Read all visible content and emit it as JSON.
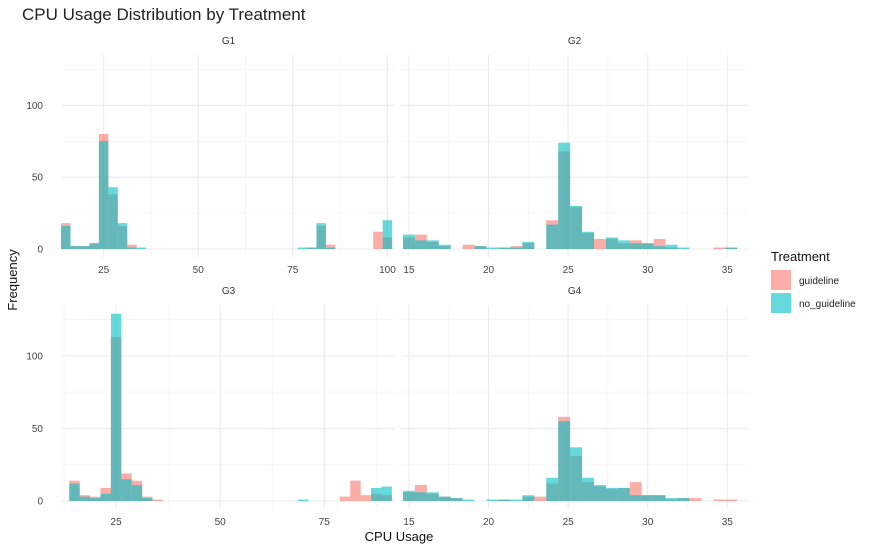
{
  "chart_data": {
    "type": "histogram",
    "title": "CPU Usage Distribution by Treatment",
    "xlabel": "CPU Usage",
    "ylabel": "Frequency",
    "legend": {
      "title": "Treatment",
      "placement": "right",
      "entries": [
        {
          "name": "guideline",
          "color": "#F8766D"
        },
        {
          "name": "no_guideline",
          "color": "#00BFC4"
        }
      ]
    },
    "ylim": [
      0,
      135
    ],
    "y_ticks": [
      0,
      50,
      100
    ],
    "grid": true,
    "panels": [
      {
        "name": "G1",
        "xlim": [
          14,
          102
        ],
        "x_ticks": [
          25,
          50,
          75,
          100
        ],
        "bin_width": 2.5,
        "series": [
          {
            "name": "guideline",
            "bins": [
              [
                15,
                18
              ],
              [
                17.5,
                2
              ],
              [
                20,
                2
              ],
              [
                22.5,
                4
              ],
              [
                25,
                80
              ],
              [
                27.5,
                38
              ],
              [
                30,
                16
              ],
              [
                32.5,
                3
              ],
              [
                80,
                1
              ],
              [
                82.5,
                16
              ],
              [
                85,
                3
              ],
              [
                97.5,
                12
              ],
              [
                100,
                8
              ]
            ]
          },
          {
            "name": "no_guideline",
            "bins": [
              [
                15,
                16
              ],
              [
                17.5,
                2
              ],
              [
                20,
                2
              ],
              [
                22.5,
                4
              ],
              [
                25,
                75
              ],
              [
                27.5,
                43
              ],
              [
                30,
                18
              ],
              [
                32.5,
                1
              ],
              [
                35,
                1
              ],
              [
                77.5,
                1
              ],
              [
                80,
                1
              ],
              [
                82.5,
                18
              ],
              [
                85,
                1
              ],
              [
                100,
                20
              ]
            ]
          }
        ]
      },
      {
        "name": "G2",
        "xlim": [
          14.5,
          36.3
        ],
        "x_ticks": [
          15,
          20,
          25,
          30,
          35
        ],
        "bin_width": 0.75,
        "series": [
          {
            "name": "guideline",
            "bins": [
              [
                15,
                8
              ],
              [
                15.75,
                10
              ],
              [
                16.5,
                5
              ],
              [
                17.25,
                2
              ],
              [
                18.75,
                3
              ],
              [
                19.5,
                2
              ],
              [
                21,
                1
              ],
              [
                21.75,
                2
              ],
              [
                22.5,
                4
              ],
              [
                24,
                20
              ],
              [
                24.75,
                68
              ],
              [
                25.5,
                29
              ],
              [
                26.25,
                11
              ],
              [
                27,
                7
              ],
              [
                27.75,
                7
              ],
              [
                28.5,
                4
              ],
              [
                29.25,
                6
              ],
              [
                30,
                4
              ],
              [
                30.75,
                7
              ],
              [
                31.5,
                1
              ],
              [
                34.5,
                1
              ],
              [
                35.25,
                1
              ]
            ]
          },
          {
            "name": "no_guideline",
            "bins": [
              [
                15,
                10
              ],
              [
                15.75,
                6
              ],
              [
                16.5,
                6
              ],
              [
                17.25,
                3
              ],
              [
                19.5,
                2
              ],
              [
                20.25,
                1
              ],
              [
                21,
                1
              ],
              [
                21.75,
                1
              ],
              [
                22.5,
                5
              ],
              [
                24,
                17
              ],
              [
                24.75,
                74
              ],
              [
                25.5,
                30
              ],
              [
                26.25,
                12
              ],
              [
                27.75,
                8
              ],
              [
                28.5,
                6
              ],
              [
                29.25,
                4
              ],
              [
                30,
                4
              ],
              [
                30.75,
                2
              ],
              [
                31.5,
                3
              ],
              [
                32.25,
                1
              ],
              [
                35.25,
                1
              ]
            ]
          }
        ]
      },
      {
        "name": "G3",
        "xlim": [
          12,
          92
        ],
        "x_ticks": [
          25,
          50,
          75
        ],
        "bin_width": 2.5,
        "series": [
          {
            "name": "guideline",
            "bins": [
              [
                15,
                14
              ],
              [
                17.5,
                4
              ],
              [
                20,
                3
              ],
              [
                22.5,
                9
              ],
              [
                25,
                113
              ],
              [
                27.5,
                19
              ],
              [
                30,
                14
              ],
              [
                32.5,
                3
              ],
              [
                35,
                1
              ],
              [
                80,
                3
              ],
              [
                82.5,
                14
              ],
              [
                85,
                4
              ],
              [
                87.5,
                5
              ],
              [
                90,
                4
              ]
            ]
          },
          {
            "name": "no_guideline",
            "bins": [
              [
                15,
                12
              ],
              [
                17.5,
                3
              ],
              [
                20,
                2
              ],
              [
                22.5,
                5
              ],
              [
                25,
                129
              ],
              [
                27.5,
                15
              ],
              [
                30,
                11
              ],
              [
                32.5,
                2
              ],
              [
                70,
                1
              ],
              [
                87.5,
                9
              ],
              [
                90,
                10
              ]
            ]
          }
        ]
      },
      {
        "name": "G4",
        "xlim": [
          14.5,
          36.3
        ],
        "x_ticks": [
          15,
          20,
          25,
          30,
          35
        ],
        "bin_width": 0.75,
        "series": [
          {
            "name": "guideline",
            "bins": [
              [
                15,
                6
              ],
              [
                15.75,
                11
              ],
              [
                16.5,
                5
              ],
              [
                17.25,
                3
              ],
              [
                18,
                2
              ],
              [
                21,
                1
              ],
              [
                22.5,
                3
              ],
              [
                23.25,
                3
              ],
              [
                24,
                12
              ],
              [
                24.75,
                58
              ],
              [
                25.5,
                31
              ],
              [
                26.25,
                13
              ],
              [
                27,
                10
              ],
              [
                27.75,
                8
              ],
              [
                28.5,
                9
              ],
              [
                29.25,
                13
              ],
              [
                30,
                4
              ],
              [
                30.75,
                4
              ],
              [
                31.5,
                1
              ],
              [
                32.25,
                2
              ],
              [
                33,
                2
              ],
              [
                34.5,
                1
              ],
              [
                35.25,
                1
              ]
            ]
          },
          {
            "name": "no_guideline",
            "bins": [
              [
                15,
                7
              ],
              [
                15.75,
                6
              ],
              [
                16.5,
                6
              ],
              [
                17.25,
                3
              ],
              [
                18,
                2
              ],
              [
                18.75,
                1
              ],
              [
                20.25,
                1
              ],
              [
                21,
                1
              ],
              [
                21.75,
                1
              ],
              [
                22.5,
                4
              ],
              [
                24,
                16
              ],
              [
                24.75,
                55
              ],
              [
                25.5,
                37
              ],
              [
                26.25,
                16
              ],
              [
                27,
                11
              ],
              [
                27.75,
                9
              ],
              [
                28.5,
                9
              ],
              [
                29.25,
                4
              ],
              [
                30,
                4
              ],
              [
                30.75,
                4
              ],
              [
                31.5,
                2
              ],
              [
                32.25,
                2
              ]
            ]
          }
        ]
      }
    ]
  }
}
